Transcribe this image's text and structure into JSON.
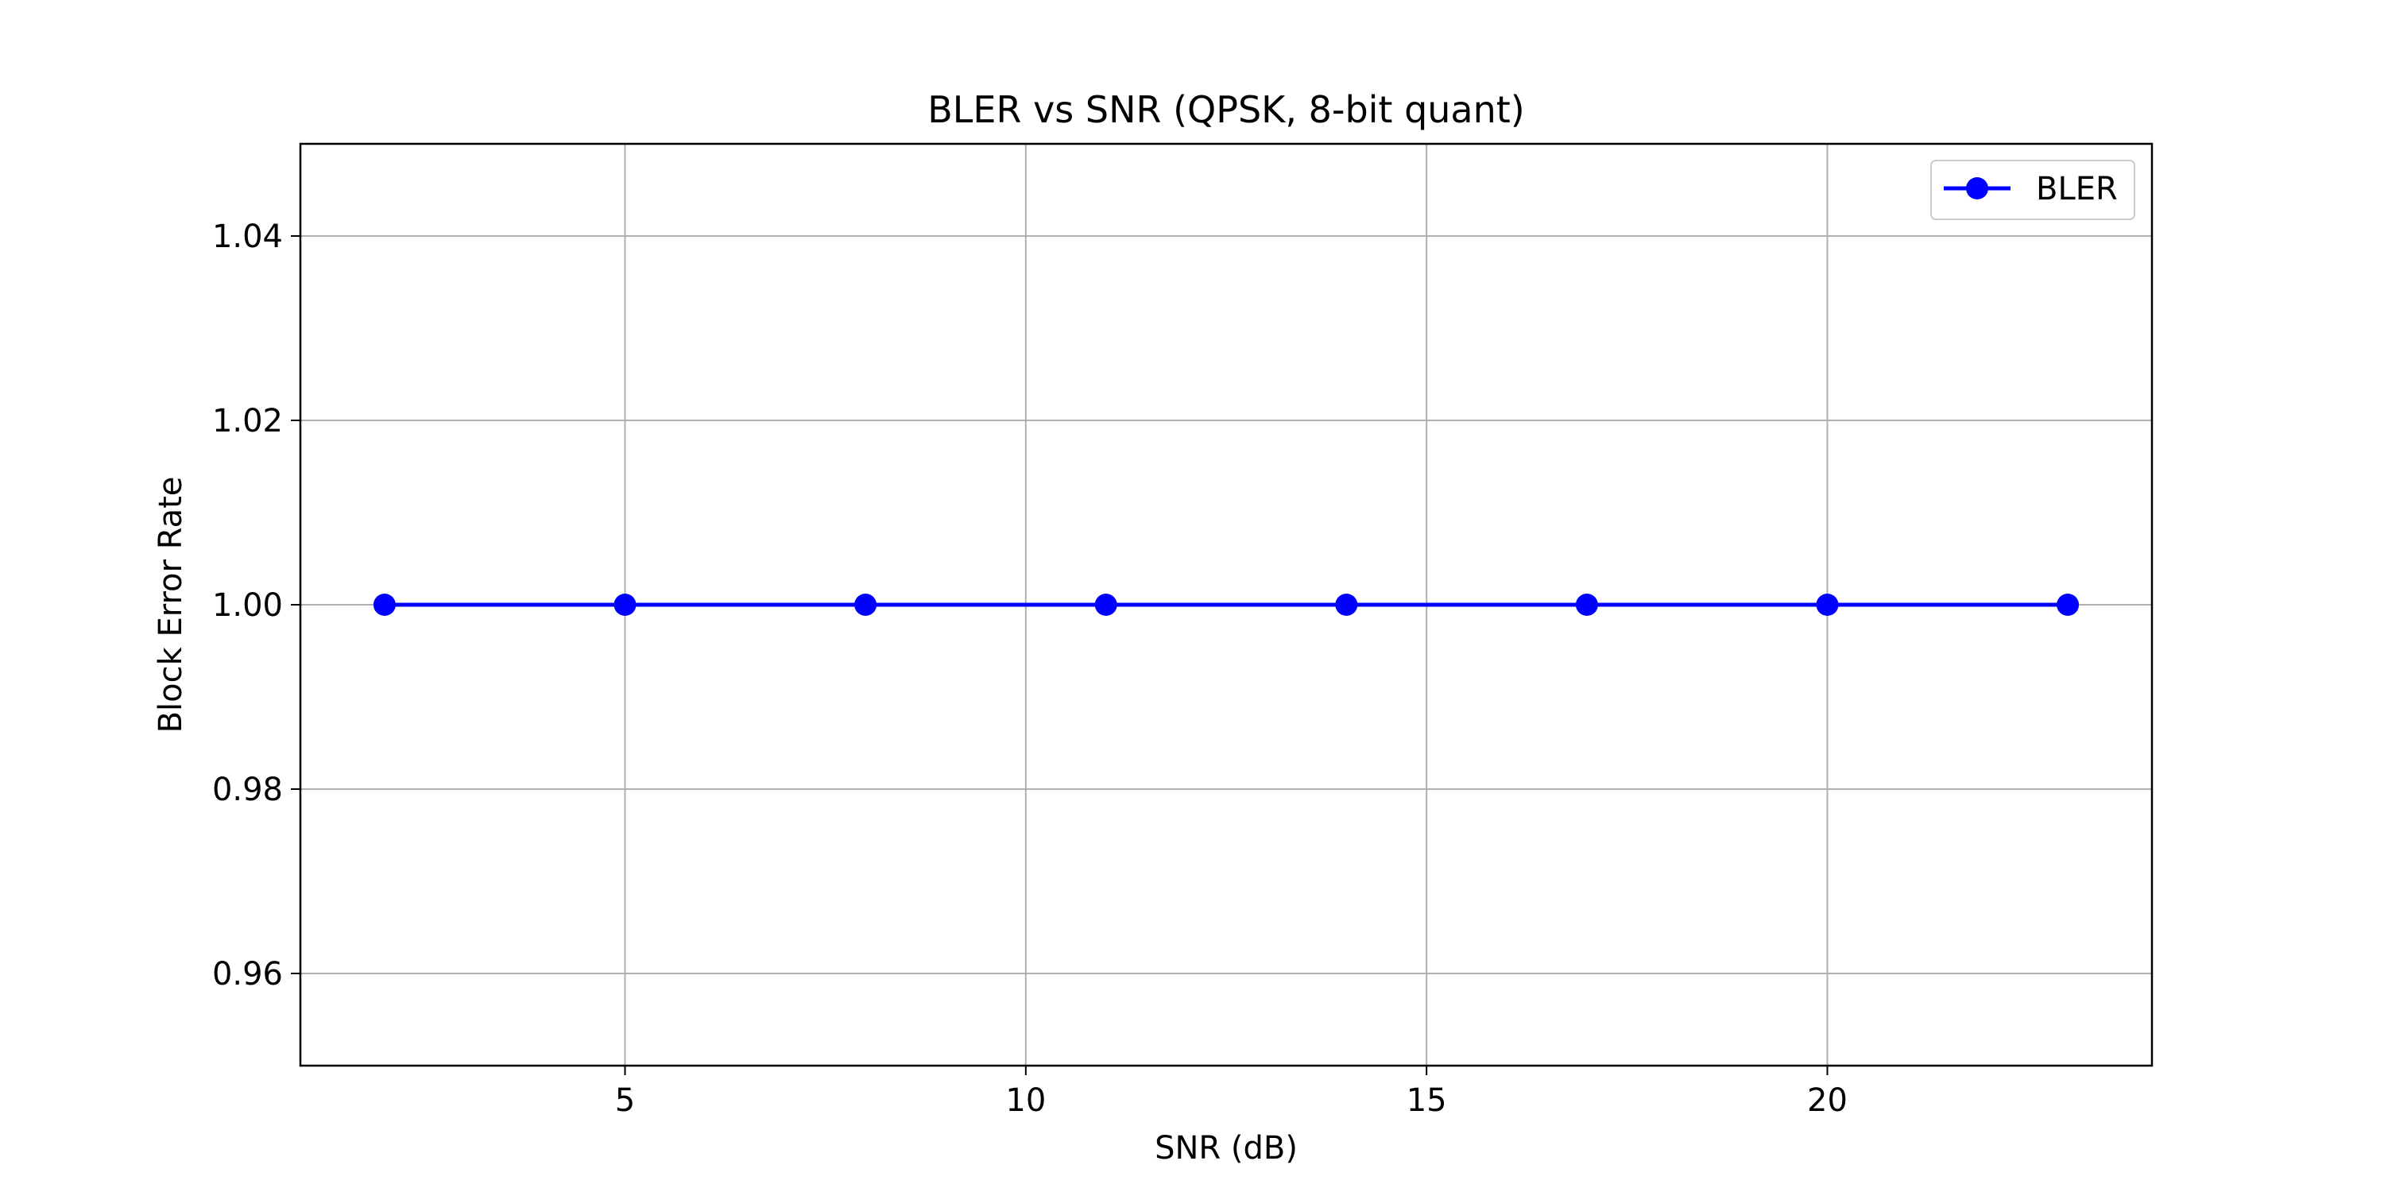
{
  "chart_data": {
    "type": "line",
    "title": "BLER vs SNR (QPSK, 8-bit quant)",
    "xlabel": "SNR (dB)",
    "ylabel": "Block Error Rate",
    "xlim": [
      0.95,
      24.05
    ],
    "ylim": [
      0.95,
      1.05
    ],
    "xticks": [
      5,
      10,
      15,
      20
    ],
    "xtick_labels": [
      "5",
      "10",
      "15",
      "20"
    ],
    "yticks": [
      0.96,
      0.98,
      1.0,
      1.02,
      1.04
    ],
    "ytick_labels": [
      "0.96",
      "0.98",
      "1.00",
      "1.02",
      "1.04"
    ],
    "grid": true,
    "legend_position": "top-right",
    "series": [
      {
        "name": "BLER",
        "color": "#0000ff",
        "marker": "circle",
        "x": [
          2,
          5,
          8,
          11,
          14,
          17,
          20,
          23
        ],
        "y": [
          1.0,
          1.0,
          1.0,
          1.0,
          1.0,
          1.0,
          1.0,
          1.0
        ]
      }
    ]
  }
}
